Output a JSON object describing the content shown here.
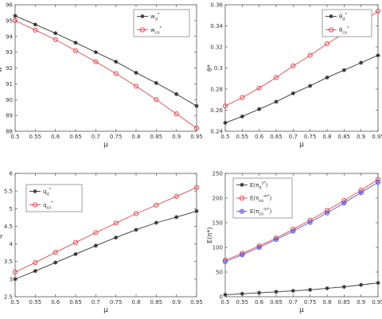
{
  "chart_data": [
    {
      "type": "line",
      "xlabel": "μ",
      "ylabel": "w*",
      "xlim": [
        0.5,
        0.95
      ],
      "ylim": [
        88,
        96
      ],
      "x_ticks": [
        0.5,
        0.55,
        0.6,
        0.65,
        0.7,
        0.75,
        0.8,
        0.85,
        0.9,
        0.95
      ],
      "x_tick_labels": [
        "0.5",
        "0.55",
        "0.6",
        "0.65",
        "0.7",
        "0.75",
        "0.8",
        "0.85",
        "0.9",
        "0.95"
      ],
      "y_ticks": [
        88,
        89,
        90,
        91,
        92,
        93,
        94,
        95,
        96
      ],
      "y_tick_labels": [
        "88",
        "89",
        "90",
        "91",
        "92",
        "93",
        "94",
        "95",
        "96"
      ],
      "legend_position": "top-right",
      "grid": false,
      "x": [
        0.5,
        0.55,
        0.6,
        0.65,
        0.7,
        0.75,
        0.8,
        0.85,
        0.9,
        0.95
      ],
      "series": [
        {
          "name": "w_d*",
          "label_base": "w",
          "label_sub": "d",
          "label_sup": "*",
          "color": "#333333",
          "marker": "star",
          "values": [
            95.3,
            94.75,
            94.2,
            93.6,
            93.0,
            92.4,
            91.7,
            91.05,
            90.35,
            89.6
          ]
        },
        {
          "name": "w_co*",
          "label_base": "w",
          "label_sub": "co",
          "label_sup": "*",
          "color": "#e8474c",
          "marker": "circle",
          "values": [
            95.0,
            94.4,
            93.8,
            93.1,
            92.4,
            91.65,
            90.85,
            90.0,
            89.1,
            88.2
          ]
        }
      ]
    },
    {
      "type": "line",
      "xlabel": "μ",
      "ylabel": "θ*",
      "xlim": [
        0.5,
        0.95
      ],
      "ylim": [
        0.24,
        0.36
      ],
      "x_ticks": [
        0.5,
        0.55,
        0.6,
        0.65,
        0.7,
        0.75,
        0.8,
        0.85,
        0.9,
        0.95
      ],
      "x_tick_labels": [
        "0.5",
        "0.55",
        "0.6",
        "0.65",
        "0.7",
        "0.75",
        "0.8",
        "0.85",
        "0.9",
        "0.95"
      ],
      "y_ticks": [
        0.24,
        0.26,
        0.28,
        0.3,
        0.32,
        0.34,
        0.36
      ],
      "y_tick_labels": [
        "0.24",
        "0.26",
        "0.28",
        "0.3",
        "0.32",
        "0.34",
        "0.36"
      ],
      "legend_position": "top-right",
      "grid": false,
      "x": [
        0.5,
        0.55,
        0.6,
        0.65,
        0.7,
        0.75,
        0.8,
        0.85,
        0.9,
        0.95
      ],
      "series": [
        {
          "name": "θ_d*",
          "label_base": "θ",
          "label_sub": "d",
          "label_sup": "*",
          "color": "#333333",
          "marker": "star",
          "values": [
            0.248,
            0.254,
            0.261,
            0.268,
            0.276,
            0.283,
            0.291,
            0.298,
            0.305,
            0.312
          ]
        },
        {
          "name": "θ_co*",
          "label_base": "θ",
          "label_sub": "co",
          "label_sup": "*",
          "color": "#e8474c",
          "marker": "circle",
          "values": [
            0.264,
            0.272,
            0.281,
            0.291,
            0.302,
            0.312,
            0.323,
            0.333,
            0.343,
            0.354
          ]
        }
      ]
    },
    {
      "type": "line",
      "xlabel": "μ",
      "ylabel": "q*",
      "xlim": [
        0.5,
        0.95
      ],
      "ylim": [
        2.5,
        6
      ],
      "x_ticks": [
        0.5,
        0.55,
        0.6,
        0.65,
        0.7,
        0.75,
        0.8,
        0.85,
        0.9,
        0.95
      ],
      "x_tick_labels": [
        "0.5",
        "0.55",
        "0.6",
        "0.65",
        "0.7",
        "0.75",
        "0.8",
        "0.85",
        "0.9",
        "0.95"
      ],
      "y_ticks": [
        2.5,
        3,
        3.5,
        4,
        4.5,
        5,
        5.5,
        6
      ],
      "y_tick_labels": [
        "2.5",
        "3",
        "3.5",
        "4",
        "4.5",
        "5",
        "5.5",
        "6"
      ],
      "legend_position": "top-left",
      "grid": false,
      "x": [
        0.5,
        0.55,
        0.6,
        0.65,
        0.7,
        0.75,
        0.8,
        0.85,
        0.9,
        0.95
      ],
      "series": [
        {
          "name": "q_d*",
          "label_base": "q",
          "label_sub": "d",
          "label_sup": "*",
          "color": "#333333",
          "marker": "star",
          "values": [
            3.0,
            3.23,
            3.47,
            3.71,
            3.95,
            4.18,
            4.4,
            4.6,
            4.76,
            4.93
          ]
        },
        {
          "name": "q_co*",
          "label_base": "q",
          "label_sub": "co",
          "label_sup": "*",
          "color": "#e8474c",
          "marker": "circle",
          "values": [
            3.2,
            3.47,
            3.76,
            4.04,
            4.32,
            4.59,
            4.86,
            5.1,
            5.35,
            5.6
          ]
        }
      ]
    },
    {
      "type": "line",
      "xlabel": "μ",
      "ylabel": "E(π*)",
      "xlim": [
        0.5,
        0.95
      ],
      "ylim": [
        0,
        250
      ],
      "x_ticks": [
        0.5,
        0.55,
        0.6,
        0.65,
        0.7,
        0.75,
        0.8,
        0.85,
        0.9,
        0.95
      ],
      "x_tick_labels": [
        "0.5",
        "0.55",
        "0.6",
        "0.65",
        "0.7",
        "0.75",
        "0.8",
        "0.85",
        "0.9",
        "0.95"
      ],
      "y_ticks": [
        0,
        50,
        100,
        150,
        200,
        250
      ],
      "y_tick_labels": [
        "0",
        "50",
        "100",
        "150",
        "200",
        "250"
      ],
      "legend_position": "top-left",
      "grid": false,
      "x": [
        0.5,
        0.55,
        0.6,
        0.65,
        0.7,
        0.75,
        0.8,
        0.85,
        0.9,
        0.95
      ],
      "series": [
        {
          "name": "E(π_d^s*)",
          "label_base": "E(π",
          "label_sub": "d",
          "label_sup": "s*",
          "label_tail": ")",
          "color": "#333333",
          "marker": "star",
          "values": [
            4,
            6,
            8,
            10,
            12,
            14,
            17,
            20,
            24,
            28
          ]
        },
        {
          "name": "E(π_co^m*)",
          "label_base": "E(π",
          "label_sub": "co",
          "label_sup": "m*",
          "label_tail": ")",
          "color": "#e8474c",
          "marker": "circle",
          "values": [
            74,
            88,
            103,
            119,
            137,
            155,
            175,
            195,
            216,
            238
          ]
        },
        {
          "name": "E(π_co^m*)",
          "label_base": "E(π",
          "label_sub": "co",
          "label_sup": "m*",
          "label_tail": ")",
          "color": "#5b5bdc",
          "marker": "circle-plus",
          "values": [
            71,
            85,
            100,
            116,
            133,
            151,
            170,
            190,
            211,
            232
          ]
        }
      ]
    }
  ]
}
